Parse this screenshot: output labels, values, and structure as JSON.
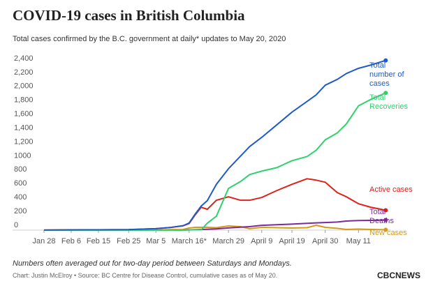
{
  "chart_data": {
    "type": "line",
    "title": "COVID-19 cases in British Columbia",
    "subtitle": "Total cases confirmed by the B.C. government at daily* updates to May 20, 2020",
    "x": [
      "Jan 28",
      "Feb 6",
      "Feb 15",
      "Feb 25",
      "Mar 5",
      "Mar 10",
      "Mar 14",
      "Mar 16",
      "Mar 18",
      "Mar 20",
      "Mar 22",
      "Mar 25",
      "Mar 29",
      "Apr 2",
      "Apr 5",
      "Apr 9",
      "Apr 14",
      "Apr 19",
      "Apr 24",
      "Apr 27",
      "Apr 30",
      "May 4",
      "May 7",
      "May 11",
      "May 15",
      "May 20"
    ],
    "series": [
      {
        "name": "Total number of cases",
        "color": "#1f5bc7",
        "values": [
          1,
          4,
          5,
          7,
          21,
          39,
          64,
          103,
          231,
          348,
          424,
          659,
          884,
          1066,
          1203,
          1336,
          1517,
          1699,
          1853,
          1948,
          2087,
          2171,
          2255,
          2330,
          2376,
          2444
        ]
      },
      {
        "name": "Total Recoveries",
        "color": "#2ed16b",
        "values": [
          0,
          0,
          0,
          0,
          0,
          0,
          0,
          4,
          5,
          5,
          100,
          200,
          600,
          700,
          800,
          850,
          900,
          1000,
          1060,
          1150,
          1300,
          1400,
          1530,
          1790,
          1880,
          1976
        ]
      },
      {
        "name": "Active cases",
        "color": "#e0201b",
        "values": [
          1,
          4,
          5,
          7,
          21,
          39,
          62,
          95,
          220,
          330,
          300,
          430,
          480,
          430,
          430,
          470,
          570,
          660,
          740,
          720,
          690,
          540,
          480,
          380,
          330,
          286
        ]
      },
      {
        "name": "Total Deaths",
        "color": "#7b2a9c",
        "values": [
          0,
          0,
          0,
          0,
          0,
          0,
          1,
          4,
          7,
          10,
          13,
          17,
          31,
          43,
          50,
          69,
          78,
          87,
          98,
          104,
          109,
          117,
          131,
          138,
          140,
          146
        ]
      },
      {
        "name": "New cases",
        "color": "#d49a1a",
        "values": [
          0,
          0,
          0,
          0,
          2,
          7,
          9,
          30,
          40,
          42,
          40,
          35,
          60,
          50,
          20,
          40,
          35,
          30,
          35,
          70,
          40,
          25,
          10,
          15,
          10,
          5
        ]
      }
    ],
    "xticks": [
      {
        "value": "Jan 28",
        "label": "Jan 28"
      },
      {
        "value": "Feb 6",
        "label": "Feb 6"
      },
      {
        "value": "Feb 15",
        "label": "Feb 15"
      },
      {
        "value": "Feb 25",
        "label": "Feb 25"
      },
      {
        "value": "Mar 5",
        "label": "Mar 5"
      },
      {
        "value": "Mar 16",
        "label": "March 16*"
      },
      {
        "value": "Mar 29",
        "label": "March 29"
      },
      {
        "value": "Apr 9",
        "label": "April 9"
      },
      {
        "value": "Apr 19",
        "label": "April 19"
      },
      {
        "value": "Apr 30",
        "label": "April 30"
      },
      {
        "value": "May 11",
        "label": "May 11"
      }
    ],
    "ylim": [
      0,
      2400
    ],
    "yticks": [
      0,
      200,
      400,
      600,
      800,
      1000,
      {
        "value": 1200,
        "label": "1,200"
      },
      {
        "value": 1400,
        "label": "1,400"
      },
      {
        "value": 1600,
        "label": "1,600"
      },
      {
        "value": 1800,
        "label": "1,800"
      },
      {
        "value": 2000,
        "label": "2,000"
      },
      {
        "value": 2200,
        "label": "2,200"
      },
      {
        "value": 2400,
        "label": "2,400"
      }
    ],
    "note": "Numbers often averaged out for two-day period between Saturdays and Mondays.",
    "credit": "Chart: Justin McElroy • Source: BC Centre for Disease Control, cumulative cases as of May 20.",
    "logo": "CBCNEWS"
  }
}
